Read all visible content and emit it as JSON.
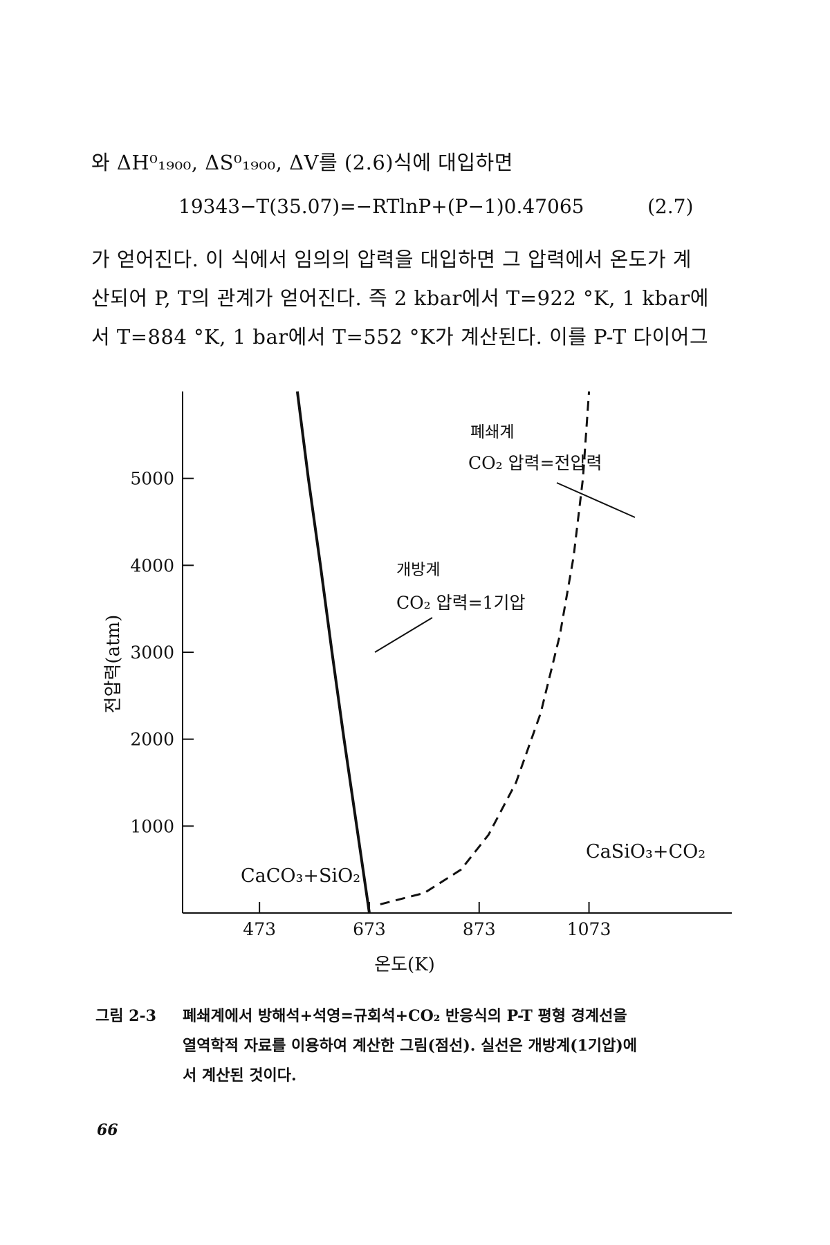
{
  "text": {
    "line1": "와 ΔH⁰₁₉₀₀, ΔS⁰₁₉₀₀, ΔV를 (2.6)식에 대입하면",
    "equation": "19343−T(35.07)=−RTlnP+(P−1)0.47065",
    "equation_number": "(2.7)",
    "line2": "가 얻어진다. 이 식에서 임의의 압력을 대입하면 그 압력에서 온도가 계",
    "line3": "산되어 P, T의 관계가 얻어진다. 즉 2 kbar에서 T=922 °K, 1 kbar에",
    "line4": "서 T=884 °K, 1 bar에서 T=552 °K가 계산된다. 이를 P-T 다이어그"
  },
  "caption": {
    "label": "그림 2-3",
    "line1": "폐쇄계에서 방해석+석영=규회석+CO₂ 반응식의 P-T 평형 경계선을",
    "line2": "열역학적 자료를 이용하여 계산한 그림(점선). 실선은 개방계(1기압)에",
    "line3": "서 계산된 것이다."
  },
  "page_number": "66",
  "chart_data": {
    "type": "line",
    "xlabel": "온도(K)",
    "ylabel": "전압력(atm)",
    "xlim": [
      333,
      1333
    ],
    "ylim": [
      0,
      6000
    ],
    "x_ticks": [
      473,
      673,
      873,
      1073
    ],
    "y_ticks": [
      1000,
      2000,
      3000,
      4000,
      5000
    ],
    "series": [
      {
        "style": "solid",
        "points": [
          [
            673,
            0
          ],
          [
            650,
            1000
          ],
          [
            627,
            2000
          ],
          [
            605,
            3000
          ],
          [
            584,
            4000
          ],
          [
            562,
            5000
          ],
          [
            542,
            6000
          ]
        ]
      },
      {
        "style": "dashed",
        "points": [
          [
            693,
            100
          ],
          [
            773,
            230
          ],
          [
            840,
            500
          ],
          [
            890,
            900
          ],
          [
            940,
            1500
          ],
          [
            985,
            2300
          ],
          [
            1020,
            3200
          ],
          [
            1045,
            4100
          ],
          [
            1062,
            5000
          ],
          [
            1073,
            6000
          ]
        ]
      }
    ],
    "annotations": {
      "closed_title": "폐쇄계",
      "closed_sub": "CO₂ 압력=전압력",
      "open_title": "개방계",
      "open_sub": "CO₂ 압력=1기압",
      "left_region": "CaCO₃+SiO₂",
      "right_region": "CaSiO₃+CO₂"
    }
  }
}
